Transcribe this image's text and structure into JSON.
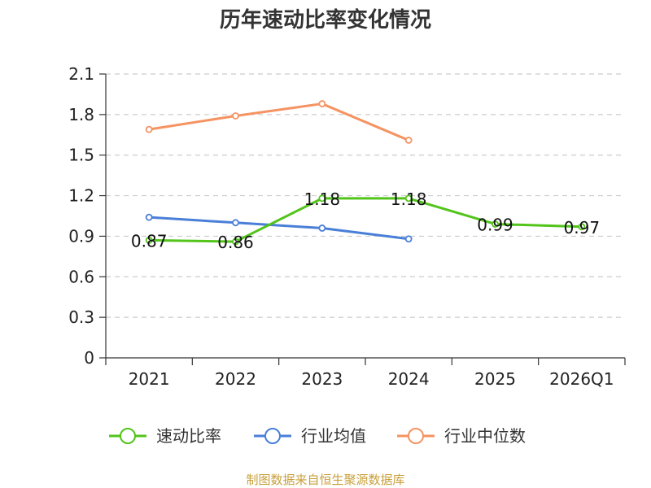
{
  "chart_data": {
    "type": "line",
    "title": "历年速动比率变化情况",
    "categories": [
      "2021",
      "2022",
      "2023",
      "2024",
      "2025",
      "2026Q1"
    ],
    "ylim": [
      0,
      2.1
    ],
    "yticks": [
      "0",
      "0.3",
      "0.6",
      "0.9",
      "1.2",
      "1.5",
      "1.8",
      "2.1"
    ],
    "grid": true,
    "legend_position": "bottom",
    "series": [
      {
        "name": "速动比率",
        "color": "#52c41a",
        "values": [
          0.87,
          0.86,
          1.18,
          1.18,
          0.99,
          0.97
        ],
        "labels": [
          "0.87",
          "0.86",
          "1.18",
          "1.18",
          "0.99",
          "0.97"
        ]
      },
      {
        "name": "行业均值",
        "color": "#4a7fd8",
        "values": [
          1.04,
          1.0,
          0.96,
          0.88,
          null,
          null
        ]
      },
      {
        "name": "行业中位数",
        "color": "#f59362",
        "values": [
          1.69,
          1.79,
          1.88,
          1.61,
          null,
          null
        ]
      }
    ]
  },
  "source_text": "制图数据来自恒生聚源数据库"
}
